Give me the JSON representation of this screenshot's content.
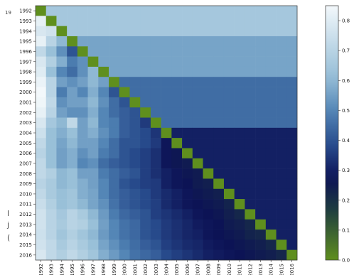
{
  "page_marks": {
    "top_left": "19",
    "left_margin": [
      "l",
      "j",
      "("
    ]
  },
  "colors": {
    "diagonal": "#5f8f1e",
    "scale_low": "#5f8f1e",
    "scale_high": "#f3f8fb"
  },
  "chart_data": {
    "type": "heatmap",
    "title": "",
    "xlabel": "",
    "ylabel": "",
    "grid": false,
    "years": [
      "1992",
      "1993",
      "1994",
      "1995",
      "1996",
      "1997",
      "1998",
      "1999",
      "2000",
      "2001",
      "2002",
      "2003",
      "2004",
      "2005",
      "2006",
      "2007",
      "2008",
      "2009",
      "2010",
      "2011",
      "2012",
      "2013",
      "2014",
      "2015",
      "2016"
    ],
    "diagonal_value": 0.0,
    "colorbar": {
      "ticks": [
        "0.0",
        "0.1",
        "0.2",
        "0.3",
        "0.4",
        "0.5",
        "0.6",
        "0.7",
        "0.8"
      ],
      "range": [
        0.0,
        0.85
      ],
      "position": "right"
    },
    "upper_triangle_row_bands": [
      {
        "rows": [
          "1992",
          "1994"
        ],
        "value": 0.65
      },
      {
        "rows": [
          "1995",
          "1998"
        ],
        "value": 0.56
      },
      {
        "rows": [
          "1999",
          "2003"
        ],
        "value": 0.45
      },
      {
        "rows": [
          "2004",
          "2016"
        ],
        "value": 0.3
      }
    ],
    "lower_triangle_rows": [
      {
        "row": "1993",
        "values": [
          0.82
        ]
      },
      {
        "row": "1994",
        "values": [
          0.78,
          0.76
        ]
      },
      {
        "row": "1995",
        "values": [
          0.82,
          0.7,
          0.6
        ]
      },
      {
        "row": "1996",
        "values": [
          0.72,
          0.62,
          0.52,
          0.4
        ]
      },
      {
        "row": "1997",
        "values": [
          0.78,
          0.68,
          0.58,
          0.48,
          0.52
        ]
      },
      {
        "row": "1998",
        "values": [
          0.8,
          0.62,
          0.5,
          0.45,
          0.52,
          0.6
        ]
      },
      {
        "row": "1999",
        "values": [
          0.83,
          0.7,
          0.55,
          0.52,
          0.55,
          0.6,
          0.55
        ]
      },
      {
        "row": "2000",
        "values": [
          0.85,
          0.7,
          0.48,
          0.55,
          0.5,
          0.58,
          0.5,
          0.4
        ]
      },
      {
        "row": "2001",
        "values": [
          0.84,
          0.72,
          0.52,
          0.55,
          0.55,
          0.6,
          0.52,
          0.45,
          0.4
        ]
      },
      {
        "row": "2002",
        "values": [
          0.82,
          0.7,
          0.55,
          0.52,
          0.52,
          0.58,
          0.5,
          0.45,
          0.42,
          0.4
        ]
      },
      {
        "row": "2003",
        "values": [
          0.78,
          0.65,
          0.6,
          0.72,
          0.55,
          0.6,
          0.5,
          0.48,
          0.42,
          0.4,
          0.35
        ]
      },
      {
        "row": "2004",
        "values": [
          0.75,
          0.62,
          0.58,
          0.62,
          0.55,
          0.58,
          0.52,
          0.48,
          0.42,
          0.4,
          0.38,
          0.34
        ]
      },
      {
        "row": "2005",
        "values": [
          0.72,
          0.62,
          0.56,
          0.6,
          0.55,
          0.55,
          0.5,
          0.45,
          0.4,
          0.4,
          0.38,
          0.35,
          0.28
        ]
      },
      {
        "row": "2006",
        "values": [
          0.7,
          0.62,
          0.55,
          0.58,
          0.52,
          0.55,
          0.48,
          0.45,
          0.4,
          0.38,
          0.36,
          0.33,
          0.28,
          0.26
        ]
      },
      {
        "row": "2007",
        "values": [
          0.72,
          0.62,
          0.55,
          0.58,
          0.5,
          0.52,
          0.45,
          0.42,
          0.4,
          0.38,
          0.36,
          0.33,
          0.28,
          0.26,
          0.25
        ]
      },
      {
        "row": "2008",
        "values": [
          0.72,
          0.68,
          0.6,
          0.62,
          0.55,
          0.55,
          0.48,
          0.45,
          0.42,
          0.4,
          0.36,
          0.33,
          0.3,
          0.28,
          0.26,
          0.25
        ]
      },
      {
        "row": "2009",
        "values": [
          0.7,
          0.66,
          0.6,
          0.62,
          0.58,
          0.55,
          0.5,
          0.45,
          0.4,
          0.38,
          0.36,
          0.35,
          0.3,
          0.28,
          0.27,
          0.25,
          0.24
        ]
      },
      {
        "row": "2010",
        "values": [
          0.72,
          0.66,
          0.62,
          0.64,
          0.58,
          0.56,
          0.5,
          0.45,
          0.42,
          0.4,
          0.38,
          0.35,
          0.32,
          0.3,
          0.28,
          0.26,
          0.25,
          0.24
        ]
      },
      {
        "row": "2011",
        "values": [
          0.74,
          0.68,
          0.62,
          0.64,
          0.6,
          0.56,
          0.52,
          0.46,
          0.42,
          0.4,
          0.38,
          0.36,
          0.32,
          0.3,
          0.28,
          0.27,
          0.26,
          0.25,
          0.23
        ]
      },
      {
        "row": "2012",
        "values": [
          0.76,
          0.7,
          0.65,
          0.7,
          0.66,
          0.6,
          0.54,
          0.48,
          0.44,
          0.42,
          0.4,
          0.36,
          0.34,
          0.32,
          0.3,
          0.28,
          0.27,
          0.26,
          0.24,
          0.22
        ]
      },
      {
        "row": "2013",
        "values": [
          0.76,
          0.7,
          0.66,
          0.7,
          0.68,
          0.62,
          0.55,
          0.5,
          0.46,
          0.44,
          0.4,
          0.38,
          0.35,
          0.33,
          0.31,
          0.29,
          0.28,
          0.27,
          0.25,
          0.24,
          0.22
        ]
      },
      {
        "row": "2014",
        "values": [
          0.75,
          0.7,
          0.64,
          0.68,
          0.64,
          0.6,
          0.54,
          0.5,
          0.46,
          0.44,
          0.4,
          0.38,
          0.35,
          0.33,
          0.31,
          0.3,
          0.28,
          0.27,
          0.26,
          0.25,
          0.23,
          0.22
        ]
      },
      {
        "row": "2015",
        "values": [
          0.76,
          0.72,
          0.66,
          0.7,
          0.66,
          0.62,
          0.56,
          0.52,
          0.48,
          0.45,
          0.42,
          0.4,
          0.36,
          0.34,
          0.32,
          0.31,
          0.29,
          0.28,
          0.27,
          0.26,
          0.25,
          0.24,
          0.22
        ]
      },
      {
        "row": "2016",
        "values": [
          0.78,
          0.72,
          0.68,
          0.72,
          0.68,
          0.64,
          0.58,
          0.54,
          0.5,
          0.46,
          0.44,
          0.42,
          0.38,
          0.36,
          0.34,
          0.32,
          0.3,
          0.29,
          0.28,
          0.27,
          0.26,
          0.25,
          0.24,
          0.22
        ]
      }
    ]
  }
}
